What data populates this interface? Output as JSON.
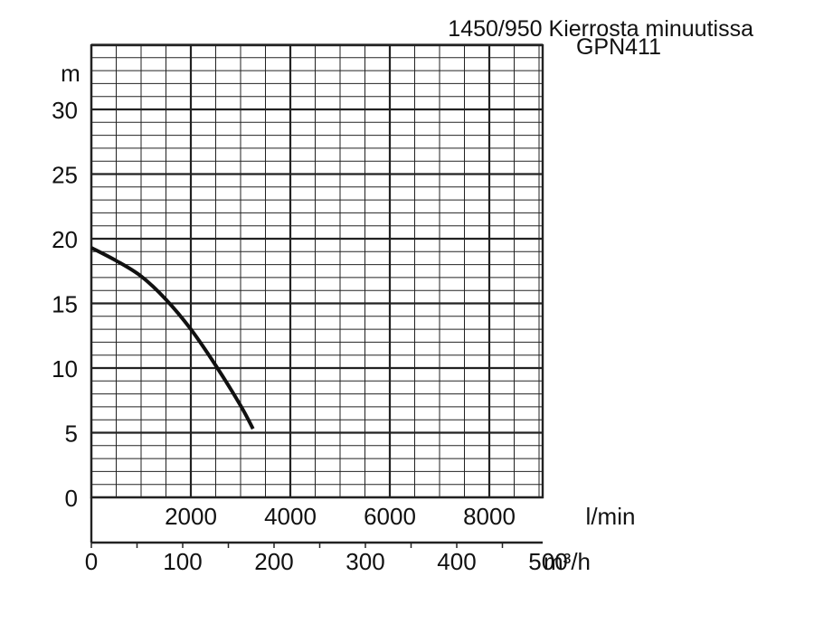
{
  "chart_data": {
    "type": "line",
    "title": "1450/950 Kierrosta minuutissa",
    "subtitle": "GPN411",
    "ylabel": "m",
    "xlabel": "l/min",
    "x2label": "m³/h",
    "ylim": [
      0,
      35
    ],
    "xlim_lmin": [
      0,
      9500
    ],
    "x2lim_m3h": [
      0,
      570
    ],
    "y_ticks": [
      0,
      5,
      10,
      15,
      20,
      25,
      30
    ],
    "x_ticks_lmin": [
      2000,
      4000,
      6000,
      8000
    ],
    "x2_ticks_m3h": [
      0,
      100,
      200,
      300,
      400,
      500
    ],
    "grid": true,
    "series": [
      {
        "x_lmin": [
          0,
          500,
          1000,
          1500,
          2000,
          2500,
          3000,
          3250
        ],
        "y_m": [
          19.3,
          18.3,
          17.1,
          15.3,
          13.0,
          10.2,
          7.1,
          5.3
        ]
      }
    ]
  },
  "colors": {
    "line": "#111111",
    "grid": "#222222",
    "background": "#ffffff"
  }
}
